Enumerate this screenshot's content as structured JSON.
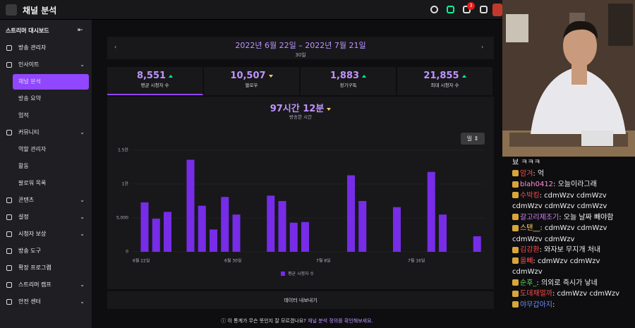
{
  "header": {
    "title": "채널 분석",
    "badge": "3"
  },
  "sidebar": {
    "title": "스트리머 대시보드",
    "items": [
      "방송 관리자",
      "인사이트",
      "채널 분석",
      "방송 요약",
      "업적",
      "커뮤니티",
      "역할 관리자",
      "활동",
      "팔로워 목록",
      "콘텐츠",
      "설정",
      "시청자 보상",
      "방송 도구",
      "확장 프로그램",
      "스트리머 캠프",
      "안전 센터"
    ]
  },
  "summary": {
    "date_range": "2022년 6월 22일 – 2022년 7월 21일",
    "days": "30일",
    "stats": [
      {
        "value": "8,551",
        "label": "평균 시청자 수"
      },
      {
        "value": "10,507",
        "label": "팔로우"
      },
      {
        "value": "1,883",
        "label": "정기구독"
      },
      {
        "value": "21,855",
        "label": "최대 시청자 수"
      }
    ],
    "featured": {
      "value": "97시간 12분",
      "label": "방송한 시간"
    },
    "period": "일",
    "export": "데이터 내보내기"
  },
  "footer": {
    "text": "이 통계가 무슨 뜻인지 잘 모르겠나요?",
    "link": "채널 분석 정의를 확인해보세요."
  },
  "chart_data": {
    "type": "bar",
    "categories": [
      "6월 22일",
      null,
      null,
      null,
      null,
      null,
      null,
      null,
      "6월 30일",
      null,
      null,
      null,
      null,
      null,
      null,
      null,
      "7월 8일",
      null,
      null,
      null,
      null,
      null,
      null,
      null,
      "7월 16일",
      null,
      null,
      null,
      null,
      null
    ],
    "series": [
      {
        "name": "평균 시청자 수",
        "color": "#772ce8",
        "values": [
          7300,
          4900,
          5900,
          null,
          13600,
          6800,
          3300,
          8100,
          5500,
          null,
          null,
          8300,
          7500,
          4300,
          4400,
          null,
          null,
          null,
          11300,
          7500,
          null,
          null,
          6600,
          null,
          null,
          11800,
          5500,
          null,
          null,
          2300
        ]
      }
    ],
    "ylim": [
      0,
      15000
    ],
    "yticks": [
      0,
      {
        "value": 5000,
        "label": "5,000"
      },
      {
        "value": 10000,
        "label": "1만"
      },
      {
        "value": 15000,
        "label": "1.5만"
      }
    ],
    "grid": true
  },
  "chat": [
    {
      "user": null,
      "text": "뵤 ㅋㅋㅋ",
      "color": "#efeff1"
    },
    {
      "user": "암겨",
      "text": ": 억",
      "color": "#ff4a4a"
    },
    {
      "user": "blah0412",
      "text": ": 오늘이라그래",
      "color": "#ff8fd6"
    },
    {
      "user": "수박킹",
      "text": ": cdmWzv cdmWzv cdmWzv cdmWzv cdmWzv",
      "color": "#ff4a4a"
    },
    {
      "user": "갈고리제조기",
      "text": ": 오늘 날짜 빼야함",
      "color": "#d282ff"
    },
    {
      "user": "스탠__",
      "text": ": cdmWzv cdmWzv cdmWzv cdmWzv",
      "color": "#ffd36b"
    },
    {
      "user": "김강환",
      "text": ": 와자보 무지개 처내",
      "color": "#ff4a4a"
    },
    {
      "user": "올빼",
      "text": ": cdmWzv cdmWzv cdmWzv",
      "color": "#ff4a4a"
    },
    {
      "user": "순후_",
      "text": ": 의외로 즉시가 낳네",
      "color": "#5dd55d"
    },
    {
      "user": "도데채멀까",
      "text": ": cdmWzv cdmWzv",
      "color": "#ff4a4a"
    },
    {
      "user": "야무갑아지",
      "text": ":",
      "color": "#6b8cff"
    }
  ]
}
